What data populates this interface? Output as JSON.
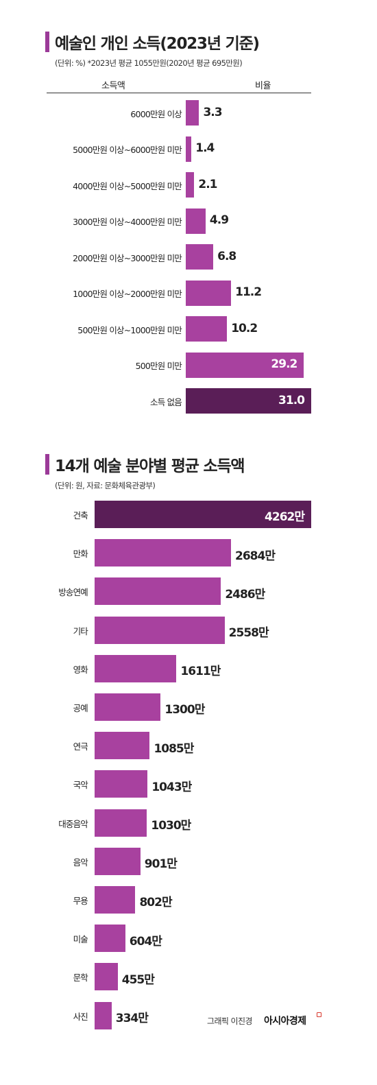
{
  "colors": {
    "bar": "#a8419f",
    "highlight": "#5a1e57",
    "accent": "#9b3a98",
    "value_text": "#222222",
    "inside_text": "#ffffff"
  },
  "chart1": {
    "title": "예술인 개인 소득(2023년 기준)",
    "note": "(단위: %) *2023년 평균 1055만원(2020년 평균 695만원)",
    "header_category": "소득액",
    "header_value": "비율"
  },
  "chart2": {
    "title": "14개 예술 분야별 평균 소득액",
    "note": "(단위: 원, 자료: 문화체육관광부)"
  },
  "chart_data": [
    {
      "type": "bar",
      "orientation": "horizontal",
      "title": "예술인 개인 소득(2023년 기준)",
      "unit": "%",
      "categories": [
        "6000만원 이상",
        "5000만원 이상~6000만원 미만",
        "4000만원 이상~5000만원 미만",
        "3000만원 이상~4000만원 미만",
        "2000만원 이상~3000만원 미만",
        "1000만원 이상~2000만원 미만",
        "500만원 이상~1000만원 미만",
        "500만원 미만",
        "소득 없음"
      ],
      "values": [
        3.3,
        1.4,
        2.1,
        4.9,
        6.8,
        11.2,
        10.2,
        29.2,
        31.0
      ],
      "labels": [
        "3.3",
        "1.4",
        "2.1",
        "4.9",
        "6.8",
        "11.2",
        "10.2",
        "29.2",
        "31.0"
      ],
      "highlight_index": 8,
      "xlim": [
        0,
        31.0
      ]
    },
    {
      "type": "bar",
      "orientation": "horizontal",
      "title": "14개 예술 분야별 평균 소득액",
      "unit": "만원",
      "categories": [
        "건축",
        "만화",
        "방송연예",
        "기타",
        "영화",
        "공예",
        "연극",
        "국악",
        "대중음악",
        "음악",
        "무용",
        "미술",
        "문학",
        "사진"
      ],
      "values": [
        4262,
        2684,
        2486,
        2558,
        1611,
        1300,
        1085,
        1043,
        1030,
        901,
        802,
        604,
        455,
        334
      ],
      "labels": [
        "4262만",
        "2684만",
        "2486만",
        "2558만",
        "1611만",
        "1300만",
        "1085만",
        "1043만",
        "1030만",
        "901만",
        "802만",
        "604만",
        "455만",
        "334만"
      ],
      "highlight_index": 0,
      "xlim": [
        0,
        4262
      ]
    }
  ],
  "footer": {
    "credit": "그래픽 이진경",
    "brand": "아시아경제"
  }
}
